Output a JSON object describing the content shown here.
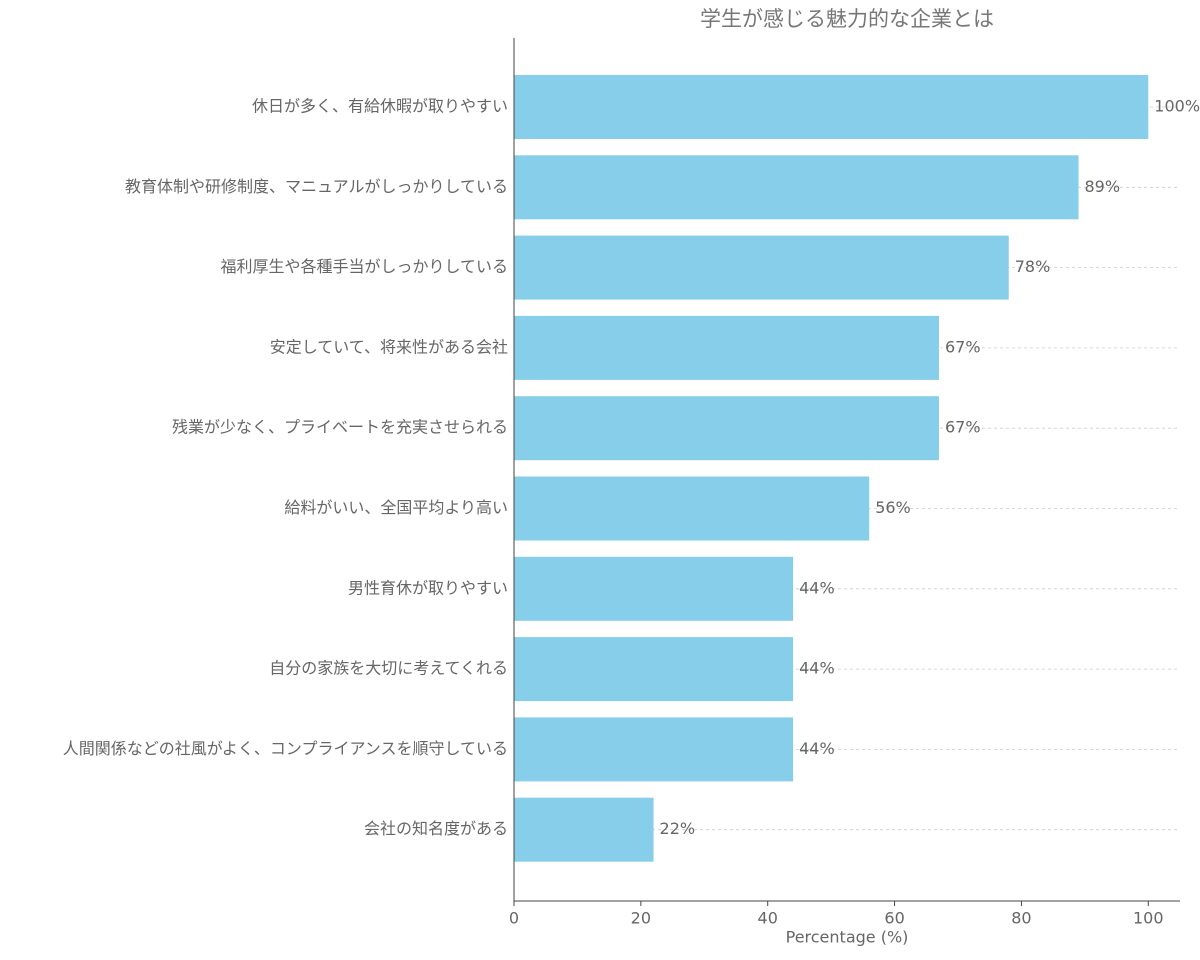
{
  "chart_data": {
    "type": "barh",
    "title": "学生が感じる魅力的な企業とは",
    "categories": [
      "休日が多く、有給休暇が取りやすい",
      "教育体制や研修制度、マニュアルがしっかりしている",
      "福利厚生や各種手当がしっかりしている",
      "安定していて、将来性がある会社",
      "残業が少なく、プライベートを充実させられる",
      "給料がいい、全国平均より高い",
      "男性育休が取りやすい",
      "自分の家族を大切に考えてくれる",
      "人間関係などの社風がよく、コンプライアンスを順守している",
      "会社の知名度がある"
    ],
    "values": [
      100,
      89,
      78,
      67,
      67,
      56,
      44,
      44,
      44,
      22
    ],
    "value_labels": [
      "100%",
      "89%",
      "78%",
      "67%",
      "67%",
      "56%",
      "44%",
      "44%",
      "44%",
      "22%"
    ],
    "color": "#87ceeb",
    "xlabel": "Percentage (%)",
    "xlim": [
      0,
      105
    ],
    "xticks": [
      0,
      20,
      40,
      60,
      80,
      100
    ],
    "grid": true
  }
}
